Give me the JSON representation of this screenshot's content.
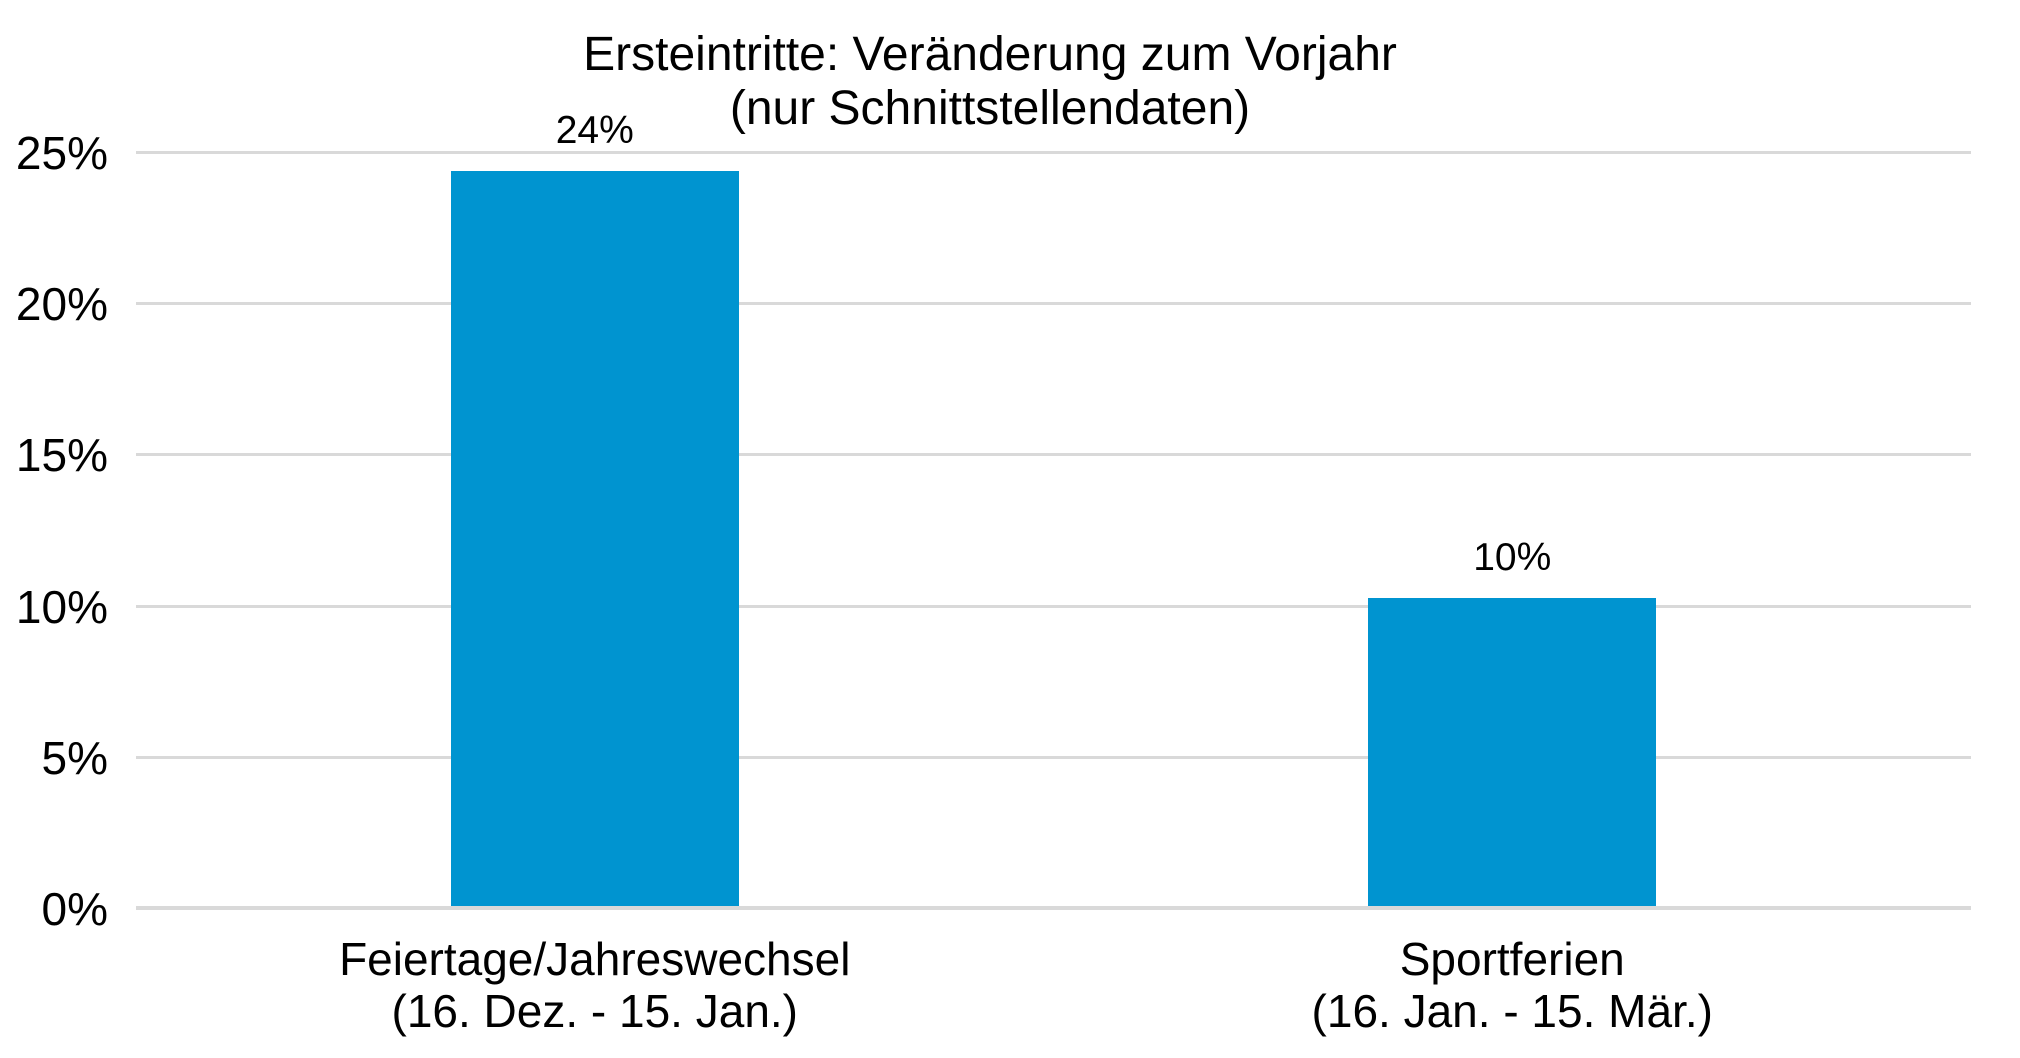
{
  "chart_data": {
    "type": "bar",
    "title": "Ersteintritte: Veränderung zum Vorjahr",
    "subtitle": "(nur Schnittstellendaten)",
    "categories": [
      "Feiertage/Jahreswechsel (16. Dez. - 15. Jan.)",
      "Sportferien (16. Jan. - 15. Mär.)"
    ],
    "category_label_lines": [
      [
        "Feiertage/Jahreswechsel",
        "(16. Dez. - 15. Jan.)"
      ],
      [
        "Sportferien",
        "(16. Jan. - 15. Mär.)"
      ]
    ],
    "values": [
      24.4,
      10.3
    ],
    "data_labels": [
      "24%",
      "10%"
    ],
    "ylabel": "",
    "xlabel": "",
    "ylim": [
      0,
      25
    ],
    "ytick_values": [
      0,
      5,
      10,
      15,
      20,
      25
    ],
    "ytick_labels": [
      "0%",
      "5%",
      "10%",
      "15%",
      "20%",
      "25%"
    ],
    "grid": "horizontal",
    "legend": "none",
    "colors": {
      "bar": "#0094D0",
      "gridline": "#D9D9D9",
      "axis_line": "#D9D9D9",
      "text": "#000000",
      "background": "#FFFFFF"
    }
  }
}
